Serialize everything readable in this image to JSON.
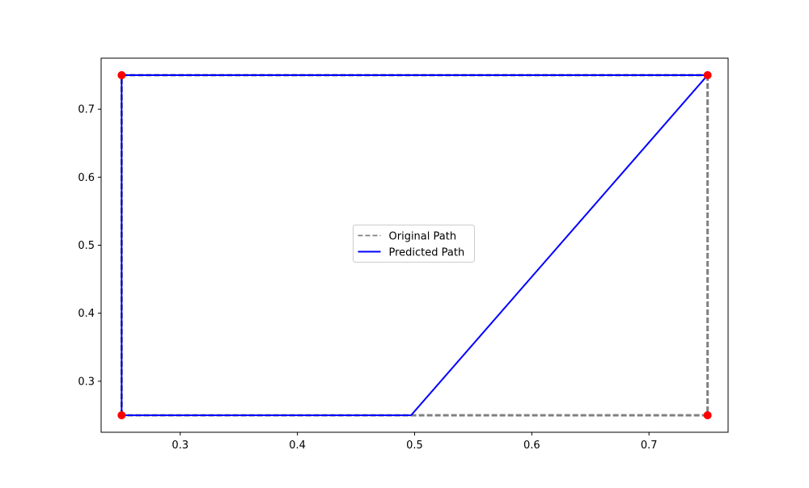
{
  "chart_data": {
    "type": "line",
    "title": "",
    "xlabel": "",
    "ylabel": "",
    "xlim": [
      0.2325,
      0.7675
    ],
    "ylim": [
      0.225,
      0.775
    ],
    "x_ticks": [
      0.3,
      0.4,
      0.5,
      0.6,
      0.7
    ],
    "y_ticks": [
      0.3,
      0.4,
      0.5,
      0.6,
      0.7
    ],
    "grid": false,
    "legend_position": "center",
    "series": [
      {
        "name": "Original Path",
        "style": "dashed",
        "color": "#808080",
        "x": [
          0.25,
          0.75,
          0.75,
          0.25,
          0.25
        ],
        "y": [
          0.75,
          0.75,
          0.25,
          0.25,
          0.75
        ]
      },
      {
        "name": "Predicted Path",
        "style": "solid",
        "color": "#0000ff",
        "x": [
          0.25,
          0.75,
          0.497,
          0.25,
          0.25
        ],
        "y": [
          0.75,
          0.75,
          0.25,
          0.25,
          0.75
        ]
      }
    ],
    "points": {
      "color": "#ff0000",
      "x": [
        0.25,
        0.75,
        0.25,
        0.75
      ],
      "y": [
        0.75,
        0.75,
        0.25,
        0.25
      ]
    }
  }
}
